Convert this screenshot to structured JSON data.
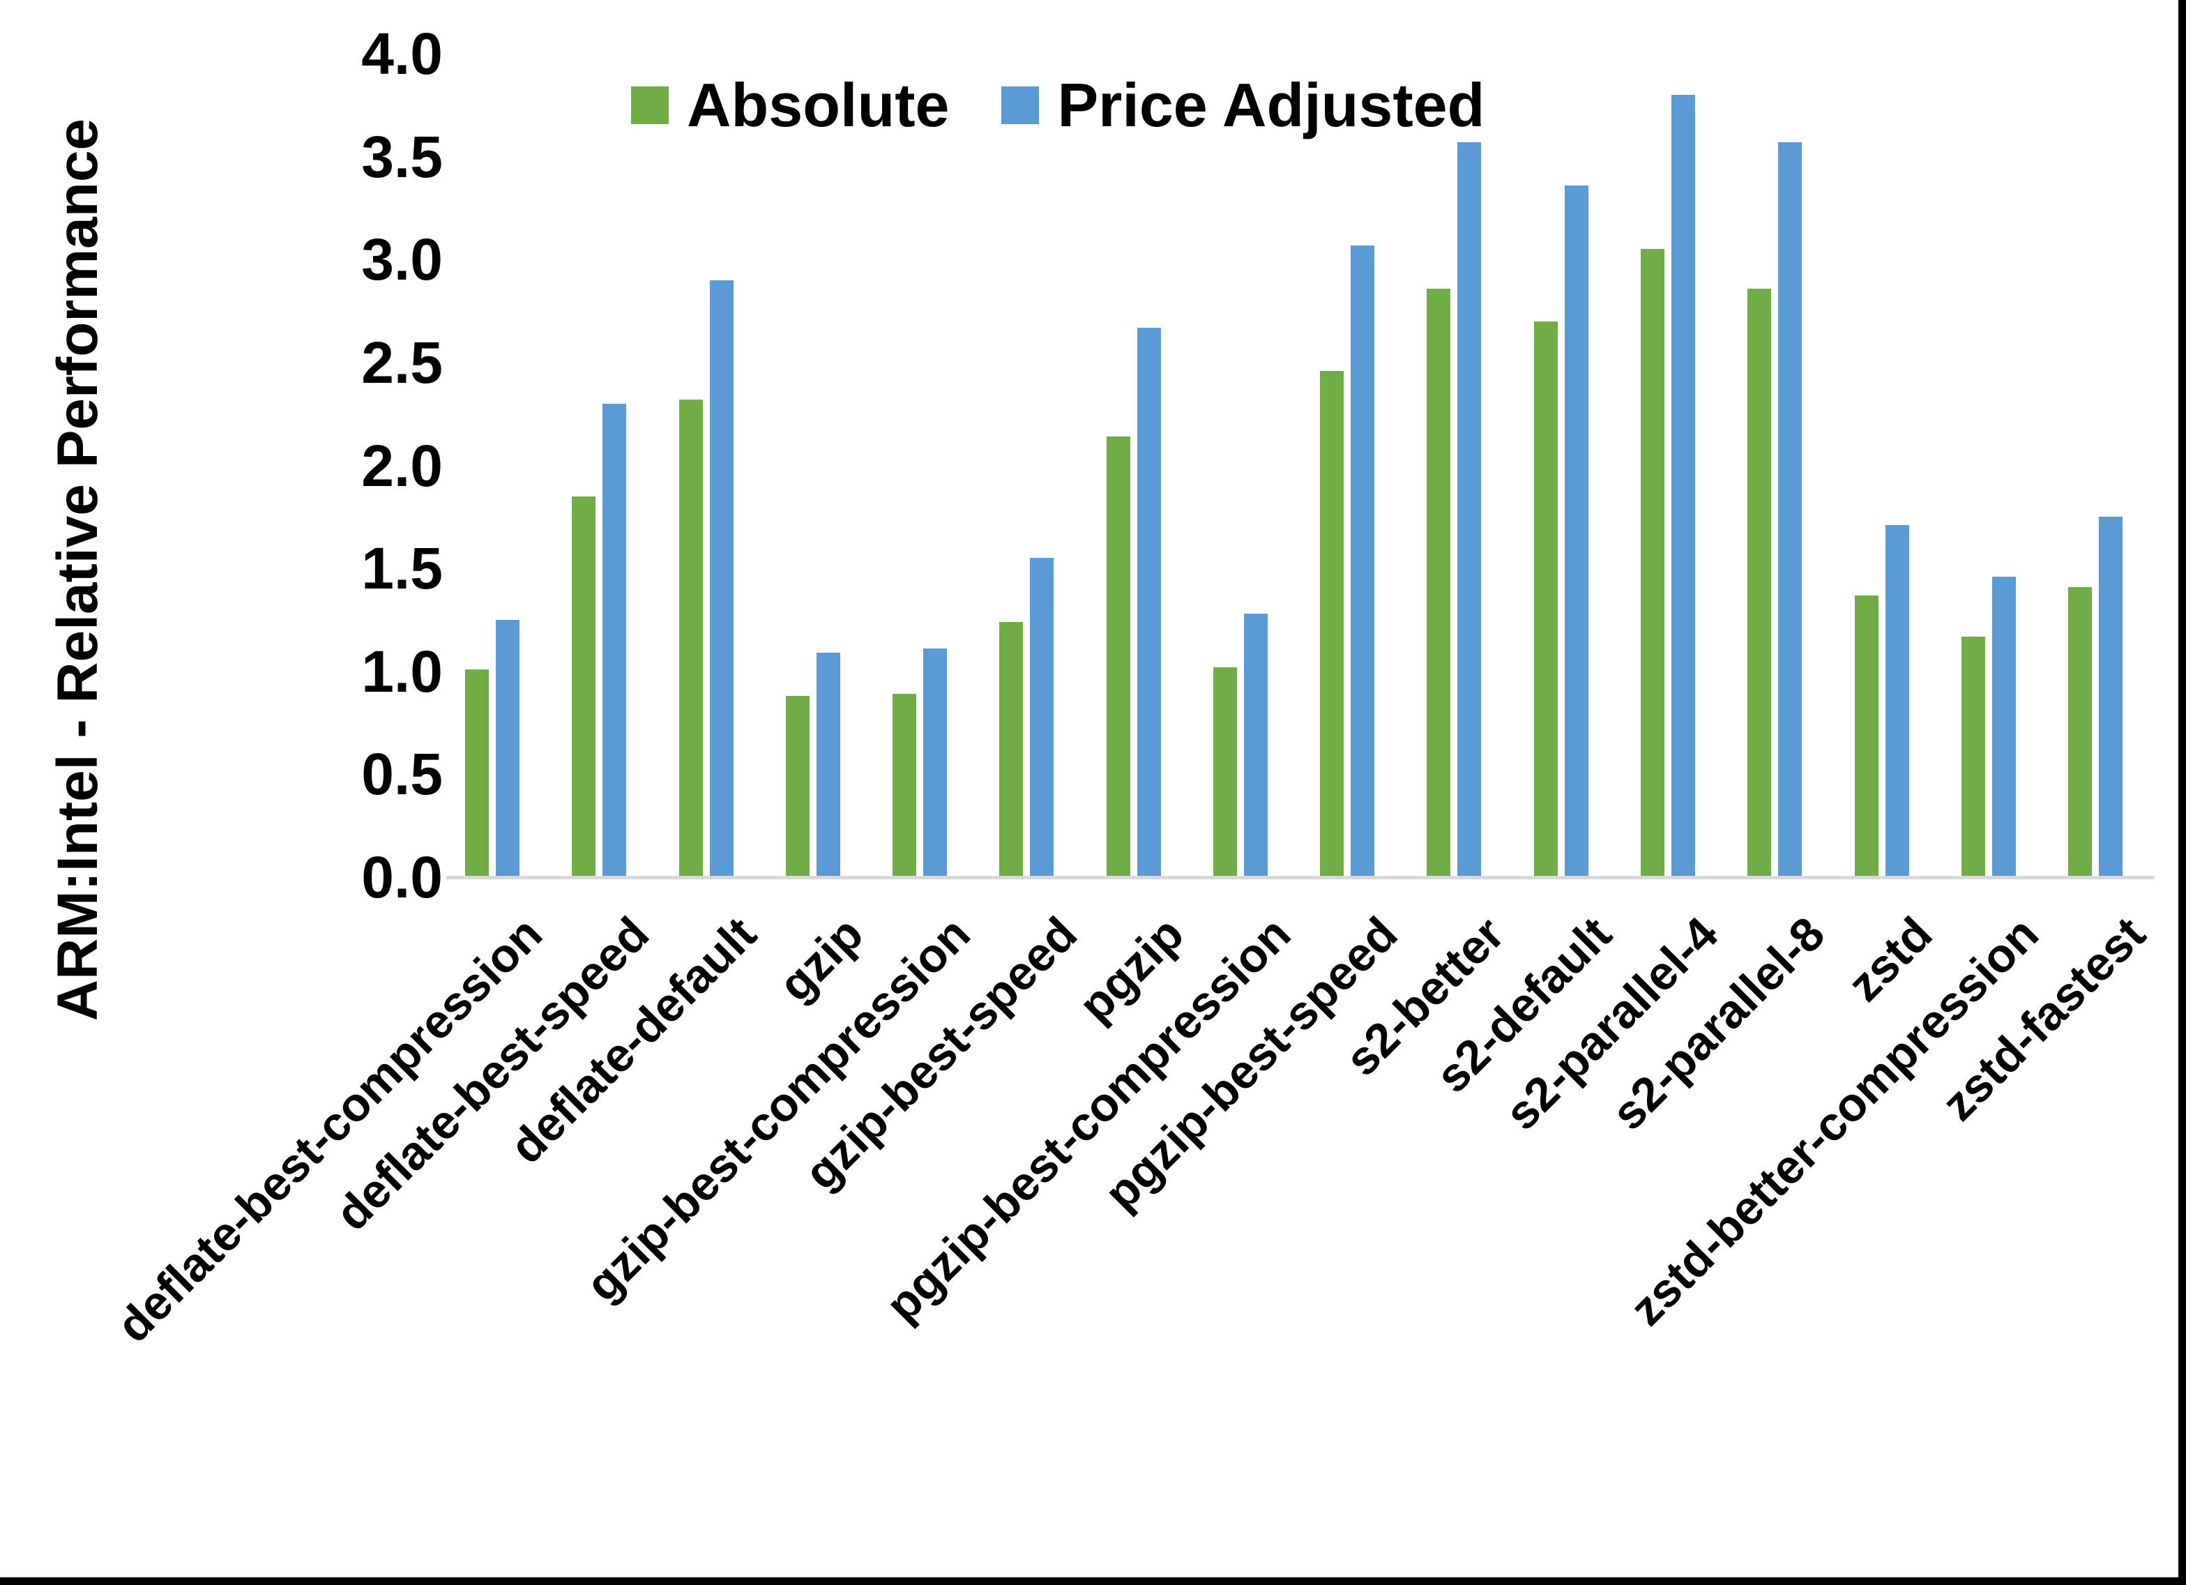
{
  "figure": {
    "y_axis_title": "ARM:Intel - Relative Performance"
  },
  "chart_data": {
    "type": "bar",
    "title": "",
    "xlabel": "",
    "ylabel": "ARM:Intel - Relative Performance",
    "ylim": [
      0.0,
      4.0
    ],
    "ytick_step": 0.5,
    "ytick_labels": [
      "0.0",
      "0.5",
      "1.0",
      "1.5",
      "2.0",
      "2.5",
      "3.0",
      "3.5",
      "4.0"
    ],
    "grid": false,
    "legend_position": "top-center",
    "categories": [
      "deflate-best-compression",
      "deflate-best-speed",
      "deflate-default",
      "gzip",
      "gzip-best-compression",
      "gzip-best-speed",
      "pgzip",
      "pgzip-best-compression",
      "pgzip-best-speed",
      "s2-better",
      "s2-default",
      "s2-parallel-4",
      "s2-parallel-8",
      "zstd",
      "zstd-better-compression",
      "zstd-fastest"
    ],
    "series": [
      {
        "name": "Absolute",
        "color": "#70AD47",
        "values": [
          1.01,
          1.85,
          2.32,
          0.88,
          0.89,
          1.24,
          2.14,
          1.02,
          2.46,
          2.86,
          2.7,
          3.05,
          2.86,
          1.37,
          1.17,
          1.41
        ]
      },
      {
        "name": "Price Adjusted",
        "color": "#5B9BD5",
        "values": [
          1.25,
          2.3,
          2.9,
          1.09,
          1.11,
          1.55,
          2.67,
          1.28,
          3.07,
          3.57,
          3.36,
          3.8,
          3.57,
          1.71,
          1.46,
          1.75
        ]
      }
    ]
  },
  "colors": {
    "axis_line": "#D9D9D9",
    "text": "#000000",
    "frame_border": "#000000",
    "background": "#FFFFFF"
  }
}
